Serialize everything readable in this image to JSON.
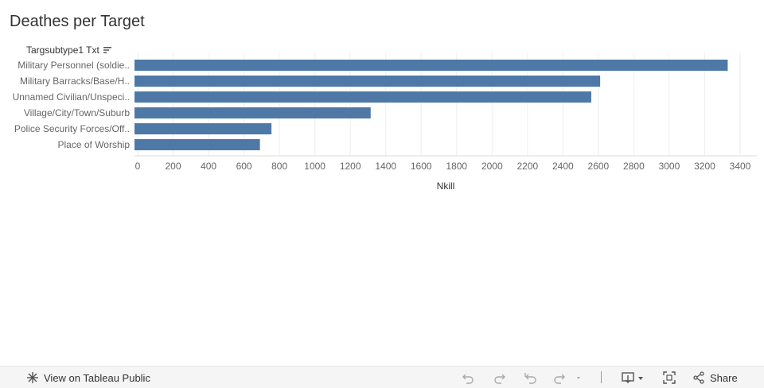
{
  "title": "Deathes per Target",
  "dimension_header": "Targsubtype1 Txt",
  "toolbar": {
    "view_label": "View on Tableau Public",
    "share_label": "Share"
  },
  "colors": {
    "bar": "#4e79a7",
    "axis_text": "#666666",
    "grid": "#eeeeee"
  },
  "chart_data": {
    "type": "bar",
    "orientation": "horizontal",
    "categories": [
      "Military Personnel (soldie..",
      "Military Barracks/Base/H..",
      "Unnamed Civilian/Unspeci..",
      "Village/City/Town/Suburb",
      "Police Security Forces/Off..",
      "Place of Worship"
    ],
    "values": [
      3330,
      2610,
      2560,
      1315,
      755,
      690
    ],
    "xlabel": "Nkill",
    "ylabel": "",
    "xlim": [
      0,
      3500
    ],
    "xticks": [
      0,
      200,
      400,
      600,
      800,
      1000,
      1200,
      1400,
      1600,
      1800,
      2000,
      2200,
      2400,
      2600,
      2800,
      3000,
      3200,
      3400
    ],
    "grid": true,
    "legend": "none"
  }
}
